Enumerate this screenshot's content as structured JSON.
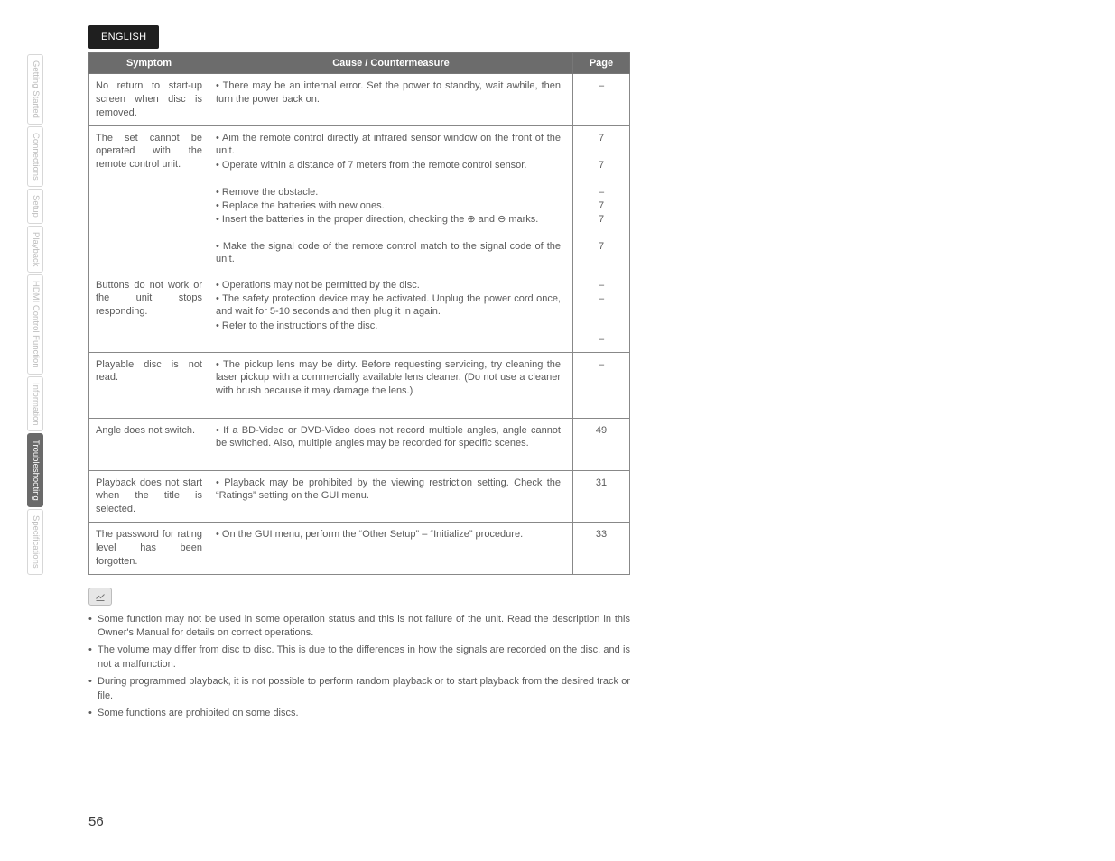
{
  "sidebar": {
    "tabs": [
      {
        "label": "Getting Started",
        "active": false
      },
      {
        "label": "Connections",
        "active": false
      },
      {
        "label": "Setup",
        "active": false
      },
      {
        "label": "Playback",
        "active": false
      },
      {
        "label": "HDMI Control Function",
        "active": false
      },
      {
        "label": "Information",
        "active": false
      },
      {
        "label": "Troubleshooting",
        "active": true
      },
      {
        "label": "Specifications",
        "active": false
      }
    ]
  },
  "language_badge": "ENGLISH",
  "table": {
    "headers": {
      "symptom": "Symptom",
      "cause": "Cause / Countermeasure",
      "page": "Page"
    },
    "rows": [
      {
        "symptom": "No return to start-up screen when disc is removed.",
        "causes": [
          {
            "text": "There may be an internal error. Set the power to standby, wait awhile, then turn the power back on.",
            "page": "–",
            "lines": 2
          }
        ]
      },
      {
        "symptom": "The set cannot be operated with the remote control unit.",
        "causes": [
          {
            "text": "Aim the remote control directly at infrared sensor window on the front of the unit.",
            "page": "7",
            "lines": 2
          },
          {
            "text": "Operate within a distance of 7 meters from the remote control sensor.",
            "page": "7",
            "lines": 2
          },
          {
            "text": "Remove the obstacle.",
            "page": "–",
            "lines": 1
          },
          {
            "text": "Replace the batteries with new ones.",
            "page": "7",
            "lines": 1
          },
          {
            "text": "Insert the batteries in the proper direction, checking the ⊕ and ⊖ marks.",
            "page": "7",
            "lines": 2
          },
          {
            "text": "Make the signal code of the remote control match to the signal code of the unit.",
            "page": "7",
            "lines": 2
          }
        ]
      },
      {
        "symptom": "Buttons do not work or the unit stops responding.",
        "causes": [
          {
            "text": "Operations may not be permitted by the disc.",
            "page": "–",
            "lines": 1
          },
          {
            "text": "The safety protection device may be activated. Unplug the power cord once, and wait for 5-10 seconds and then plug it in again.",
            "page": "–",
            "lines": 2
          },
          {
            "text": "Refer to the instructions of the disc.",
            "page": "",
            "lines": 1
          },
          {
            "text": "",
            "page": "–",
            "lines": 1,
            "blank": true
          }
        ]
      },
      {
        "symptom": "Playable disc is not read.",
        "causes": [
          {
            "text": "The pickup lens may be dirty. Before requesting servicing, try cleaning the laser pickup with a commercially available lens cleaner. (Do not use a cleaner with brush because it may damage the lens.)",
            "page": "–",
            "lines": 4
          }
        ]
      },
      {
        "symptom": "Angle does not switch.",
        "causes": [
          {
            "text": "If a BD-Video or DVD-Video does not record multiple angles, angle cannot be switched. Also, multiple angles may be recorded for specific scenes.",
            "page": "49",
            "lines": 3
          }
        ]
      },
      {
        "symptom": "Playback does not start when the title is selected.",
        "causes": [
          {
            "text": "Playback may be prohibited by the viewing restriction setting. Check the “Ratings” setting on the GUI menu.",
            "page": "31",
            "lines": 2
          }
        ]
      },
      {
        "symptom": "The password for rating level has been forgotten.",
        "causes": [
          {
            "text": "On the GUI menu, perform the “Other Setup” – “Initialize” procedure.",
            "page": "33",
            "lines": 2
          }
        ]
      }
    ]
  },
  "notes": [
    "Some function may not be used in some operation status and this is not failure of the unit. Read the description in this Owner's Manual for details on correct operations.",
    "The volume may differ from disc to disc. This is due to the differences in how the signals are recorded on the disc, and is not a malfunction.",
    "During programmed playback, it is not possible to perform random playback or to start playback from the desired track or file.",
    "Some functions are prohibited on some discs."
  ],
  "page_number": "56"
}
